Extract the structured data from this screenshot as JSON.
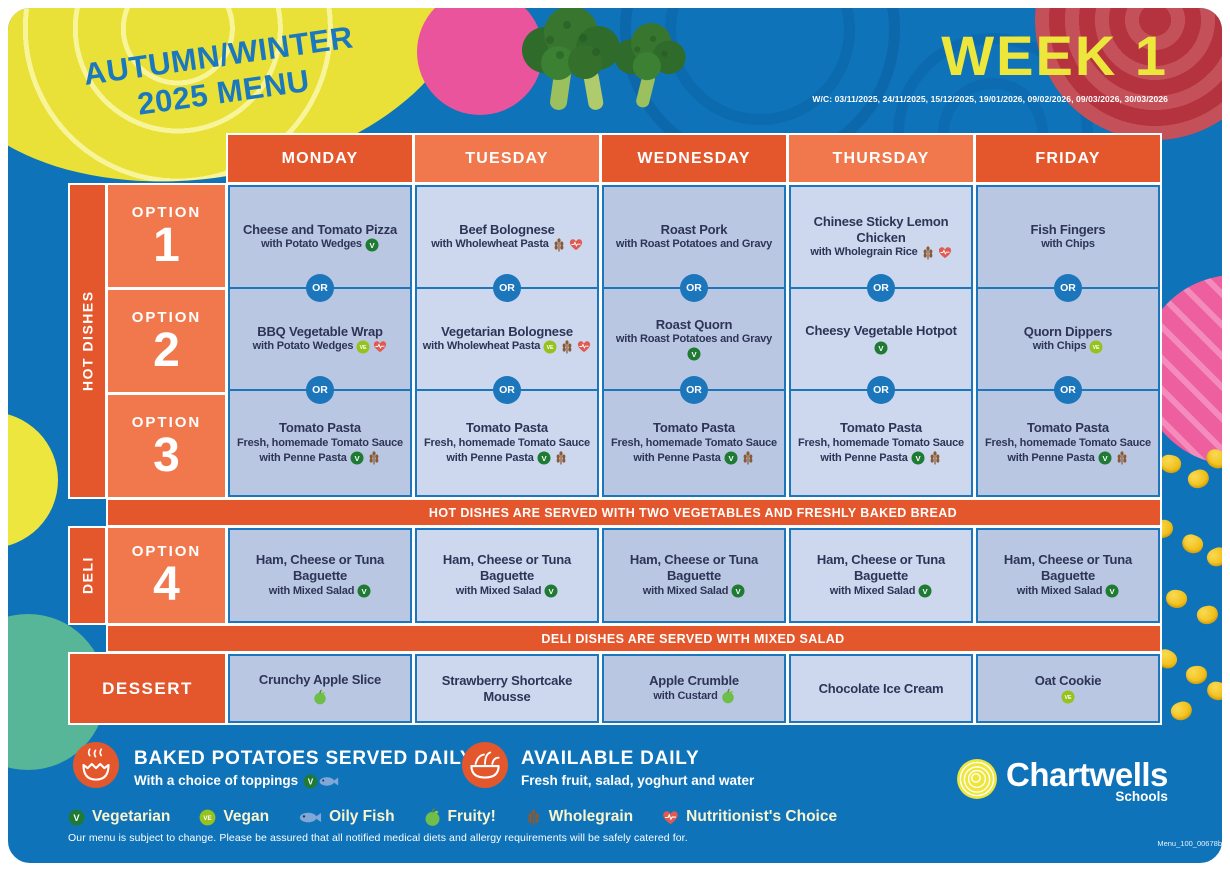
{
  "header": {
    "title_line1": "AUTUMN/WINTER",
    "title_line2": "2025 MENU",
    "week": "WEEK 1",
    "week_dates": "W/C: 03/11/2025, 24/11/2025, 15/12/2025, 19/01/2026, 09/02/2026, 09/03/2026, 30/03/2026"
  },
  "days": [
    "MONDAY",
    "TUESDAY",
    "WEDNESDAY",
    "THURSDAY",
    "FRIDAY"
  ],
  "sections": {
    "hot_dishes_label": "HOT DISHES",
    "deli_label": "DELI",
    "dessert_label": "DESSERT",
    "option_word": "OPTION",
    "or_label": "OR"
  },
  "options": [
    {
      "num": "1",
      "cells": [
        {
          "title": "Cheese and Tomato Pizza",
          "lines": [
            "with Potato Wedges"
          ],
          "icons": [
            "vegetarian"
          ]
        },
        {
          "title": "Beef Bolognese",
          "lines": [
            "with Wholewheat Pasta"
          ],
          "icons": [
            "wholegrain",
            "nutritionist"
          ]
        },
        {
          "title": "Roast Pork",
          "lines": [
            "with Roast Potatoes and Gravy"
          ],
          "icons": []
        },
        {
          "title": "Chinese Sticky Lemon Chicken",
          "lines": [
            "with Wholegrain Rice"
          ],
          "icons": [
            "wholegrain",
            "nutritionist"
          ]
        },
        {
          "title": "Fish Fingers",
          "lines": [
            "with Chips"
          ],
          "icons": []
        }
      ]
    },
    {
      "num": "2",
      "cells": [
        {
          "title": "BBQ Vegetable Wrap",
          "lines": [
            "with Potato Wedges"
          ],
          "icons": [
            "vegan",
            "nutritionist"
          ]
        },
        {
          "title": "Vegetarian Bolognese",
          "lines": [
            "with Wholewheat Pasta"
          ],
          "icons": [
            "vegan",
            "wholegrain",
            "nutritionist"
          ]
        },
        {
          "title": "Roast Quorn",
          "lines": [
            "with Roast Potatoes and Gravy"
          ],
          "icons": [
            "vegetarian"
          ]
        },
        {
          "title": "Cheesy Vegetable Hotpot",
          "lines": [],
          "icons": [
            "vegetarian"
          ]
        },
        {
          "title": "Quorn Dippers",
          "lines": [
            "with Chips"
          ],
          "icons": [
            "vegan"
          ]
        }
      ]
    },
    {
      "num": "3",
      "cells": [
        {
          "title": "Tomato Pasta",
          "lines": [
            "Fresh, homemade Tomato Sauce",
            "with Penne Pasta"
          ],
          "icons": [
            "vegetarian",
            "wholegrain"
          ]
        },
        {
          "title": "Tomato Pasta",
          "lines": [
            "Fresh, homemade Tomato Sauce",
            "with Penne Pasta"
          ],
          "icons": [
            "vegetarian",
            "wholegrain"
          ]
        },
        {
          "title": "Tomato Pasta",
          "lines": [
            "Fresh, homemade Tomato Sauce",
            "with Penne Pasta"
          ],
          "icons": [
            "vegetarian",
            "wholegrain"
          ]
        },
        {
          "title": "Tomato Pasta",
          "lines": [
            "Fresh, homemade Tomato Sauce",
            "with Penne Pasta"
          ],
          "icons": [
            "vegetarian",
            "wholegrain"
          ]
        },
        {
          "title": "Tomato Pasta",
          "lines": [
            "Fresh, homemade Tomato Sauce",
            "with Penne Pasta"
          ],
          "icons": [
            "vegetarian",
            "wholegrain"
          ]
        }
      ]
    }
  ],
  "deli": {
    "num": "4",
    "cells": [
      {
        "title": "Ham, Cheese or Tuna Baguette",
        "lines": [
          "with Mixed Salad"
        ],
        "icons": [
          "vegetarian"
        ]
      },
      {
        "title": "Ham, Cheese or Tuna Baguette",
        "lines": [
          "with Mixed Salad"
        ],
        "icons": [
          "vegetarian"
        ]
      },
      {
        "title": "Ham, Cheese or Tuna Baguette",
        "lines": [
          "with Mixed Salad"
        ],
        "icons": [
          "vegetarian"
        ]
      },
      {
        "title": "Ham, Cheese or Tuna Baguette",
        "lines": [
          "with Mixed Salad"
        ],
        "icons": [
          "vegetarian"
        ]
      },
      {
        "title": "Ham, Cheese or Tuna Baguette",
        "lines": [
          "with Mixed Salad"
        ],
        "icons": [
          "vegetarian"
        ]
      }
    ]
  },
  "dessert_cells": [
    {
      "title": "Crunchy Apple Slice",
      "lines": [],
      "icons": [
        "fruity"
      ]
    },
    {
      "title": "Strawberry Shortcake Mousse",
      "lines": [],
      "icons": []
    },
    {
      "title": "Apple Crumble",
      "lines": [
        "with Custard"
      ],
      "icons": [
        "fruity"
      ]
    },
    {
      "title": "Chocolate Ice Cream",
      "lines": [],
      "icons": []
    },
    {
      "title": "Oat Cookie",
      "lines": [],
      "icons": [
        "vegan"
      ]
    }
  ],
  "banners": {
    "hot": "HOT DISHES ARE SERVED WITH TWO VEGETABLES AND FRESHLY BAKED BREAD",
    "deli": "DELI DISHES ARE SERVED WITH MIXED SALAD"
  },
  "footer": {
    "baked_title": "BAKED POTATOES SERVED DAILY",
    "baked_sub": "With a choice of toppings",
    "baked_icons": [
      "vegetarian",
      "oily-fish"
    ],
    "available_title": "AVAILABLE DAILY",
    "available_sub": "Fresh fruit, salad, yoghurt and water",
    "legend": [
      {
        "icon": "vegetarian",
        "label": "Vegetarian"
      },
      {
        "icon": "vegan",
        "label": "Vegan"
      },
      {
        "icon": "oily-fish",
        "label": "Oily Fish"
      },
      {
        "icon": "fruity",
        "label": "Fruity!"
      },
      {
        "icon": "wholegrain",
        "label": "Wholegrain"
      },
      {
        "icon": "nutritionist",
        "label": "Nutritionist's Choice"
      }
    ],
    "disclaimer": "Our menu is subject to change. Please be assured that all notified medical diets and allergy requirements will be safely catered for.",
    "brand": "Chartwells",
    "brand_sub": "Schools",
    "doc_code": "Menu_100_00678b"
  },
  "colors": {
    "background": "#0F73B9",
    "orange_dark": "#E4572C",
    "orange_light": "#F0784C",
    "cell_blue_dark": "#BAC7E3",
    "cell_blue_light": "#CDD8EF",
    "divider_blue": "#1C76BC",
    "accent_yellow": "#EDE73C",
    "text_navy": "#2E3456"
  }
}
